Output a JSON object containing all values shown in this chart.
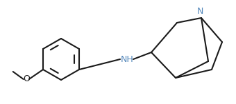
{
  "bg_color": "#ffffff",
  "line_color": "#1a1a1a",
  "label_color_NH": "#5588bb",
  "label_color_N": "#5588bb",
  "label_color_O": "#1a1a1a",
  "line_width": 1.5,
  "fig_width": 3.4,
  "fig_height": 1.51,
  "dpi": 100,
  "NH_label": "NH",
  "N_label": "N",
  "O_label": "O"
}
